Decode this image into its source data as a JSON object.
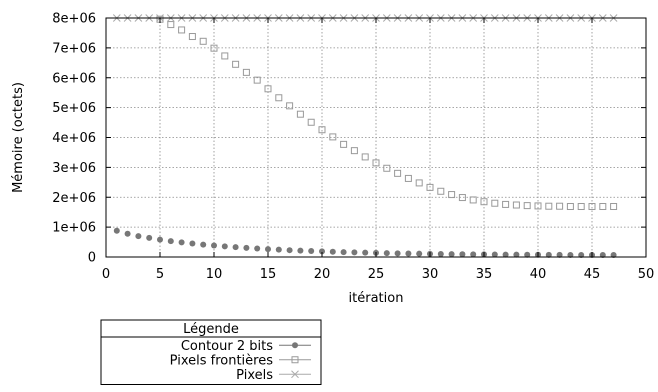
{
  "chart_data": {
    "type": "scatter",
    "title": "",
    "xlabel": "itération",
    "ylabel": "Mémoire (octets)",
    "xlim": [
      0,
      50
    ],
    "ylim": [
      0,
      8000000
    ],
    "x_ticks": [
      0,
      5,
      10,
      15,
      20,
      25,
      30,
      35,
      40,
      45,
      50
    ],
    "x_tick_labels": [
      "0",
      "5",
      "10",
      "15",
      "20",
      "25",
      "30",
      "35",
      "40",
      "45",
      "50"
    ],
    "y_ticks": [
      0,
      1000000,
      2000000,
      3000000,
      4000000,
      5000000,
      6000000,
      7000000,
      8000000
    ],
    "y_tick_labels": [
      "0",
      "1e+06",
      "2e+06",
      "3e+06",
      "4e+06",
      "5e+06",
      "6e+06",
      "7e+06",
      "8e+06"
    ],
    "grid": true,
    "legend": {
      "title": "Légende",
      "placement": "below-left"
    },
    "series": [
      {
        "name": "Contour 2 bits",
        "marker": "filled-circle",
        "color": "#777777",
        "x": [
          1,
          2,
          3,
          4,
          5,
          6,
          7,
          8,
          9,
          10,
          11,
          12,
          13,
          14,
          15,
          16,
          17,
          18,
          19,
          20,
          21,
          22,
          23,
          24,
          25,
          26,
          27,
          28,
          29,
          30,
          31,
          32,
          33,
          34,
          35,
          36,
          37,
          38,
          39,
          40,
          41,
          42,
          43,
          44,
          45,
          46,
          47
        ],
        "y": [
          880000,
          780000,
          700000,
          640000,
          580000,
          530000,
          490000,
          450000,
          415000,
          385000,
          355000,
          330000,
          305000,
          285000,
          265000,
          245000,
          228000,
          213000,
          200000,
          188000,
          176000,
          165000,
          155000,
          146000,
          138000,
          130000,
          123000,
          117000,
          111000,
          106000,
          101000,
          97000,
          93000,
          89000,
          86000,
          83000,
          80000,
          78000,
          76000,
          74000,
          72000,
          70000,
          69000,
          68000,
          67000,
          66000,
          65000
        ]
      },
      {
        "name": "Pixels frontières",
        "marker": "open-square",
        "color": "#999999",
        "x": [
          5,
          6,
          7,
          8,
          9,
          10,
          11,
          12,
          13,
          14,
          15,
          16,
          17,
          18,
          19,
          20,
          21,
          22,
          23,
          24,
          25,
          26,
          27,
          28,
          29,
          30,
          31,
          32,
          33,
          34,
          35,
          36,
          37,
          38,
          39,
          40,
          41,
          42,
          43,
          44,
          45,
          46,
          47
        ],
        "y": [
          7960000,
          7780000,
          7600000,
          7380000,
          7220000,
          6990000,
          6730000,
          6450000,
          6180000,
          5920000,
          5630000,
          5330000,
          5060000,
          4780000,
          4510000,
          4260000,
          4020000,
          3770000,
          3560000,
          3350000,
          3150000,
          2970000,
          2800000,
          2630000,
          2480000,
          2330000,
          2200000,
          2090000,
          1990000,
          1910000,
          1850000,
          1800000,
          1760000,
          1740000,
          1720000,
          1710000,
          1700000,
          1700000,
          1690000,
          1690000,
          1690000,
          1690000,
          1690000
        ]
      },
      {
        "name": "Pixels",
        "marker": "cross",
        "color": "#aaaaaa",
        "x": [
          1,
          2,
          3,
          4,
          5,
          6,
          7,
          8,
          9,
          10,
          11,
          12,
          13,
          14,
          15,
          16,
          17,
          18,
          19,
          20,
          21,
          22,
          23,
          24,
          25,
          26,
          27,
          28,
          29,
          30,
          31,
          32,
          33,
          34,
          35,
          36,
          37,
          38,
          39,
          40,
          41,
          42,
          43,
          44,
          45,
          46,
          47
        ],
        "y": [
          8000000,
          8000000,
          8000000,
          8000000,
          8000000,
          8000000,
          8000000,
          8000000,
          8000000,
          8000000,
          8000000,
          8000000,
          8000000,
          8000000,
          8000000,
          8000000,
          8000000,
          8000000,
          8000000,
          8000000,
          8000000,
          8000000,
          8000000,
          8000000,
          8000000,
          8000000,
          8000000,
          8000000,
          8000000,
          8000000,
          8000000,
          8000000,
          8000000,
          8000000,
          8000000,
          8000000,
          8000000,
          8000000,
          8000000,
          8000000,
          8000000,
          8000000,
          8000000,
          8000000,
          8000000,
          8000000,
          8000000
        ]
      }
    ]
  }
}
